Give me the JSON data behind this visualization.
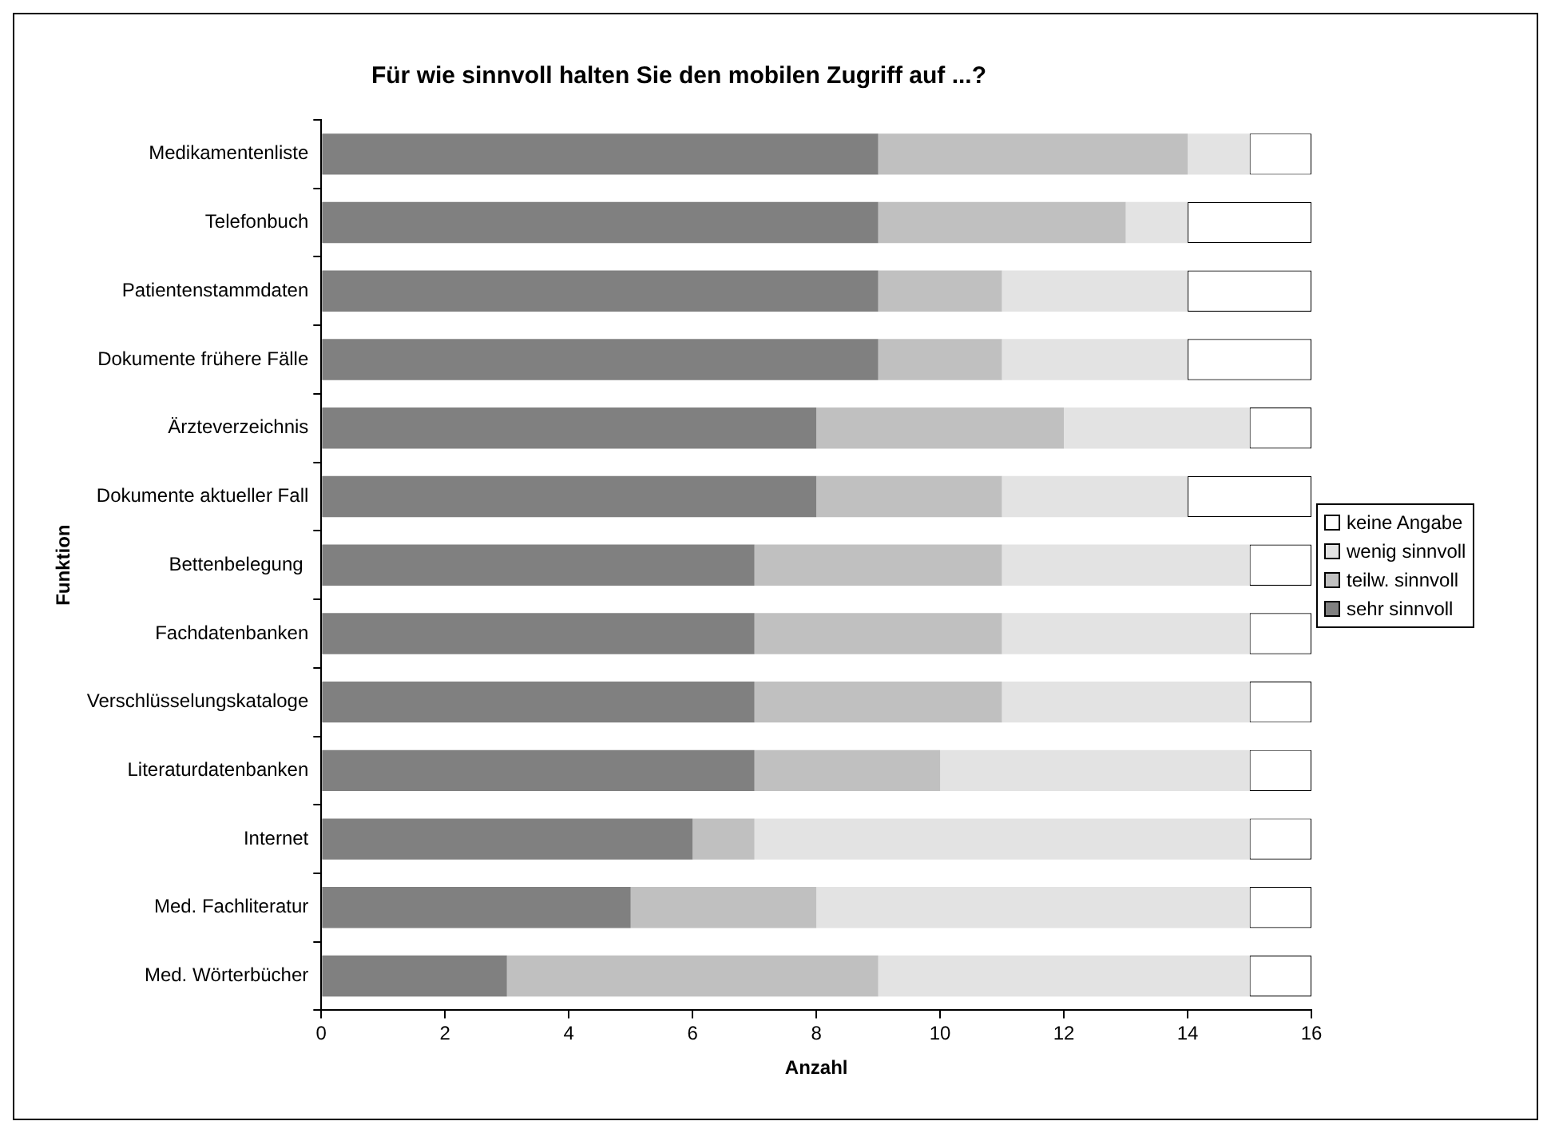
{
  "chart_data": {
    "type": "bar",
    "orientation": "horizontal",
    "stacked": true,
    "title": "Für wie sinnvoll halten Sie den mobilen Zugriff auf ...?",
    "xlabel": "Anzahl",
    "ylabel": "Funktion",
    "categories": [
      "Medikamentenliste",
      "Telefonbuch",
      "Patientenstammdaten",
      "Dokumente frühere Fälle",
      "Ärzteverzeichnis",
      "Dokumente aktueller Fall",
      "Bettenbelegung ",
      "Fachdatenbanken",
      "Verschlüsselungskataloge",
      "Literaturdatenbanken",
      "Internet",
      "Med. Fachliteratur",
      "Med. Wörterbücher"
    ],
    "series": [
      {
        "name": "sehr sinnvoll",
        "color": "#808080",
        "values": [
          9,
          9,
          9,
          9,
          8,
          8,
          7,
          7,
          7,
          7,
          6,
          5,
          3
        ]
      },
      {
        "name": "teilw. sinnvoll",
        "color": "#c0c0c0",
        "values": [
          5,
          4,
          2,
          2,
          4,
          3,
          4,
          4,
          4,
          3,
          1,
          3,
          6
        ]
      },
      {
        "name": "wenig sinnvoll",
        "color": "#e3e3e3",
        "values": [
          1,
          1,
          3,
          3,
          3,
          3,
          4,
          4,
          4,
          5,
          8,
          7,
          6
        ]
      },
      {
        "name": "keine Angabe",
        "color": "#ffffff",
        "values": [
          1,
          2,
          2,
          2,
          1,
          2,
          1,
          1,
          1,
          1,
          1,
          1,
          1
        ]
      }
    ],
    "xlim": [
      0,
      16
    ],
    "xticks": [
      0,
      2,
      4,
      6,
      8,
      10,
      12,
      14,
      16
    ],
    "grid": false,
    "legend": "right"
  }
}
